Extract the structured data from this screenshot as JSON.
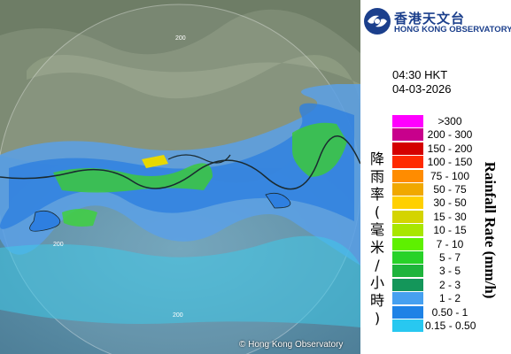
{
  "map": {
    "copyright": "© Hong Kong Observatory",
    "range_ring_label": "200"
  },
  "logo": {
    "chinese_name": "香港天文台",
    "english_name": "HONG KONG OBSERVATORY",
    "icon": "hko-emblem-icon"
  },
  "time": {
    "clock": "04:30 HKT",
    "date": "04-03-2026"
  },
  "legend": {
    "title_chinese": "降雨率(毫米/小時)",
    "title_english": "Rainfall Rate (mm/h)",
    "items": [
      {
        "label": ">300",
        "color": "#ff00ff"
      },
      {
        "label": "200 - 300",
        "color": "#c8008c"
      },
      {
        "label": "150 - 200",
        "color": "#d40000"
      },
      {
        "label": "100 - 150",
        "color": "#ff2a00"
      },
      {
        "label": "75 - 100",
        "color": "#ff8c00"
      },
      {
        "label": "50 - 75",
        "color": "#f0a800"
      },
      {
        "label": "30 - 50",
        "color": "#ffd000"
      },
      {
        "label": "15 - 30",
        "color": "#d4d400"
      },
      {
        "label": "10 - 15",
        "color": "#a8e600"
      },
      {
        "label": "7 - 10",
        "color": "#5ef000"
      },
      {
        "label": "5 - 7",
        "color": "#28d228"
      },
      {
        "label": "3 - 5",
        "color": "#1eb43c"
      },
      {
        "label": "2 - 3",
        "color": "#14965a"
      },
      {
        "label": "1 - 2",
        "color": "#46a0f0"
      },
      {
        "label": "0.50 - 1",
        "color": "#1e82e6"
      },
      {
        "label": "0.15 - 0.50",
        "color": "#28c8f0"
      }
    ]
  }
}
